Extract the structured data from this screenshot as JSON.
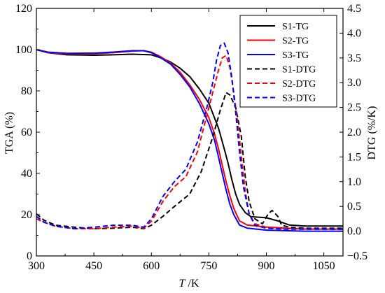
{
  "chart_data": {
    "type": "line",
    "x_axis": {
      "label_italic": "T",
      "label_unit": " /K",
      "ticks": [
        300,
        450,
        600,
        750,
        900,
        1050
      ],
      "range": [
        300,
        1100
      ]
    },
    "y_left": {
      "label": "TGA (%)",
      "ticks": [
        0,
        20,
        40,
        60,
        80,
        100,
        120
      ],
      "range": [
        0,
        120
      ]
    },
    "y_right": {
      "label": "DTG (%/K)",
      "ticks": [
        "−0.5",
        "0.0",
        "0.5",
        "1.0",
        "1.5",
        "2.0",
        "2.5",
        "3.0",
        "3.5",
        "4.0",
        "4.5"
      ],
      "tick_values": [
        -0.5,
        0,
        0.5,
        1,
        1.5,
        2,
        2.5,
        3,
        3.5,
        4,
        4.5
      ],
      "range": [
        -0.5,
        4.5
      ]
    },
    "legend_position": "top-right",
    "series": [
      {
        "name": "S1-TG",
        "color": "#000000",
        "dash": "solid",
        "axis": "left",
        "points": [
          [
            300,
            100
          ],
          [
            330,
            98.5
          ],
          [
            380,
            97.5
          ],
          [
            450,
            97.3
          ],
          [
            500,
            97.5
          ],
          [
            550,
            97.8
          ],
          [
            600,
            97.5
          ],
          [
            625,
            96
          ],
          [
            650,
            94
          ],
          [
            675,
            91
          ],
          [
            700,
            87
          ],
          [
            725,
            81
          ],
          [
            750,
            74
          ],
          [
            775,
            62
          ],
          [
            790,
            52
          ],
          [
            800,
            45
          ],
          [
            810,
            37
          ],
          [
            820,
            30
          ],
          [
            830,
            25
          ],
          [
            845,
            21
          ],
          [
            860,
            19
          ],
          [
            900,
            18.5
          ],
          [
            930,
            17
          ],
          [
            960,
            15
          ],
          [
            1000,
            14.5
          ],
          [
            1100,
            14.5
          ]
        ]
      },
      {
        "name": "S2-TG",
        "color": "#ff0000",
        "dash": "solid",
        "axis": "left",
        "points": [
          [
            300,
            100
          ],
          [
            330,
            98.5
          ],
          [
            380,
            98
          ],
          [
            450,
            98
          ],
          [
            500,
            98.5
          ],
          [
            550,
            99.3
          ],
          [
            580,
            99.5
          ],
          [
            600,
            98.8
          ],
          [
            625,
            96.5
          ],
          [
            650,
            93.5
          ],
          [
            675,
            89
          ],
          [
            700,
            83
          ],
          [
            725,
            76
          ],
          [
            750,
            67
          ],
          [
            765,
            59
          ],
          [
            775,
            52
          ],
          [
            785,
            44
          ],
          [
            795,
            36
          ],
          [
            805,
            29
          ],
          [
            815,
            23
          ],
          [
            830,
            17
          ],
          [
            850,
            15
          ],
          [
            900,
            14
          ],
          [
            1000,
            13
          ],
          [
            1100,
            13
          ]
        ]
      },
      {
        "name": "S3-TG",
        "color": "#0000ff",
        "dash": "solid",
        "axis": "left",
        "points": [
          [
            300,
            100
          ],
          [
            330,
            98.8
          ],
          [
            380,
            98.2
          ],
          [
            450,
            98.3
          ],
          [
            500,
            98.8
          ],
          [
            550,
            99.5
          ],
          [
            580,
            99.5
          ],
          [
            600,
            98.5
          ],
          [
            625,
            96
          ],
          [
            650,
            93
          ],
          [
            675,
            88
          ],
          [
            700,
            82
          ],
          [
            725,
            74
          ],
          [
            750,
            64
          ],
          [
            765,
            56
          ],
          [
            775,
            48
          ],
          [
            785,
            40
          ],
          [
            795,
            32
          ],
          [
            805,
            25
          ],
          [
            815,
            20
          ],
          [
            830,
            15
          ],
          [
            850,
            13.5
          ],
          [
            900,
            12.5
          ],
          [
            1000,
            12
          ],
          [
            1100,
            12
          ]
        ]
      },
      {
        "name": "S1-DTG",
        "color": "#000000",
        "dash": "dashed",
        "axis": "right",
        "points": [
          [
            300,
            0.35
          ],
          [
            320,
            0.22
          ],
          [
            350,
            0.12
          ],
          [
            400,
            0.08
          ],
          [
            450,
            0.05
          ],
          [
            500,
            0.06
          ],
          [
            550,
            0.08
          ],
          [
            580,
            0.05
          ],
          [
            600,
            0.12
          ],
          [
            630,
            0.3
          ],
          [
            660,
            0.5
          ],
          [
            700,
            0.75
          ],
          [
            730,
            1.2
          ],
          [
            760,
            1.9
          ],
          [
            780,
            2.45
          ],
          [
            795,
            2.8
          ],
          [
            805,
            2.75
          ],
          [
            820,
            2.5
          ],
          [
            835,
            1.9
          ],
          [
            845,
            1.1
          ],
          [
            855,
            0.6
          ],
          [
            870,
            0.25
          ],
          [
            890,
            0.15
          ],
          [
            905,
            0.35
          ],
          [
            915,
            0.42
          ],
          [
            930,
            0.3
          ],
          [
            940,
            0.12
          ],
          [
            960,
            0.08
          ],
          [
            1000,
            0.06
          ],
          [
            1100,
            0.06
          ]
        ]
      },
      {
        "name": "S2-DTG",
        "color": "#ff0000",
        "dash": "dashed",
        "axis": "right",
        "points": [
          [
            300,
            0.25
          ],
          [
            320,
            0.18
          ],
          [
            350,
            0.1
          ],
          [
            400,
            0.05
          ],
          [
            450,
            0.05
          ],
          [
            500,
            0.08
          ],
          [
            550,
            0.1
          ],
          [
            580,
            0.06
          ],
          [
            600,
            0.2
          ],
          [
            630,
            0.6
          ],
          [
            660,
            0.9
          ],
          [
            690,
            1.1
          ],
          [
            720,
            1.6
          ],
          [
            740,
            2.2
          ],
          [
            760,
            2.8
          ],
          [
            775,
            3.25
          ],
          [
            785,
            3.5
          ],
          [
            795,
            3.55
          ],
          [
            805,
            3.3
          ],
          [
            815,
            2.8
          ],
          [
            825,
            2.2
          ],
          [
            835,
            1.5
          ],
          [
            845,
            0.8
          ],
          [
            855,
            0.35
          ],
          [
            870,
            0.15
          ],
          [
            900,
            0.08
          ],
          [
            950,
            0.05
          ],
          [
            1100,
            0.04
          ]
        ]
      },
      {
        "name": "S3-DTG",
        "color": "#0000ff",
        "dash": "dashed",
        "axis": "right",
        "points": [
          [
            300,
            0.3
          ],
          [
            320,
            0.18
          ],
          [
            350,
            0.1
          ],
          [
            400,
            0.05
          ],
          [
            450,
            0.08
          ],
          [
            500,
            0.12
          ],
          [
            550,
            0.12
          ],
          [
            580,
            0.08
          ],
          [
            600,
            0.25
          ],
          [
            630,
            0.7
          ],
          [
            660,
            1.0
          ],
          [
            690,
            1.25
          ],
          [
            720,
            1.8
          ],
          [
            745,
            2.5
          ],
          [
            760,
            3.0
          ],
          [
            770,
            3.45
          ],
          [
            780,
            3.75
          ],
          [
            790,
            3.8
          ],
          [
            800,
            3.6
          ],
          [
            810,
            3.1
          ],
          [
            820,
            2.4
          ],
          [
            830,
            1.6
          ],
          [
            840,
            0.9
          ],
          [
            855,
            0.35
          ],
          [
            870,
            0.12
          ],
          [
            900,
            0.06
          ],
          [
            950,
            0.04
          ],
          [
            1100,
            0.04
          ]
        ]
      }
    ]
  }
}
